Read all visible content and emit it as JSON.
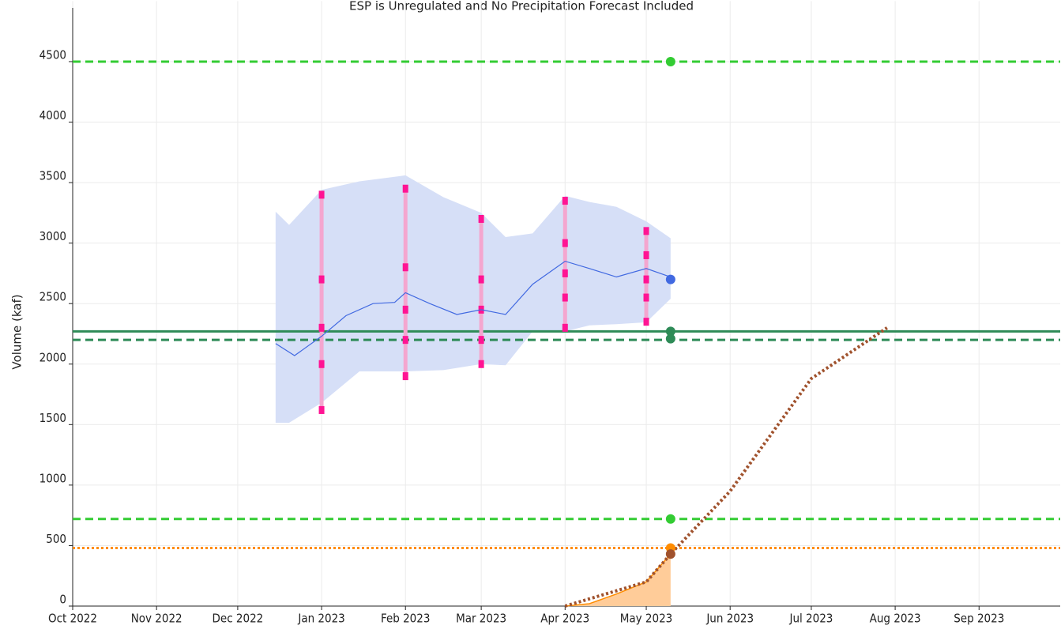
{
  "chart_data": {
    "type": "line",
    "title": "ESP is Unregulated and No Precipitation Forecast Included",
    "y_label": "Volume (kaf)",
    "xlim": [
      "2022-10-01",
      "2023-10-01"
    ],
    "xticks": [
      {
        "value": "2022-10-01",
        "label": "Oct 2022"
      },
      {
        "value": "2022-11-01",
        "label": "Nov 2022"
      },
      {
        "value": "2022-12-01",
        "label": "Dec 2022"
      },
      {
        "value": "2023-01-01",
        "label": "Jan 2023"
      },
      {
        "value": "2023-02-01",
        "label": "Feb 2023"
      },
      {
        "value": "2023-03-01",
        "label": "Mar 2023"
      },
      {
        "value": "2023-04-01",
        "label": "Apr 2023"
      },
      {
        "value": "2023-05-01",
        "label": "May 2023"
      },
      {
        "value": "2023-06-01",
        "label": "Jun 2023"
      },
      {
        "value": "2023-07-01",
        "label": "Jul 2023"
      },
      {
        "value": "2023-08-01",
        "label": "Aug 2023"
      },
      {
        "value": "2023-09-01",
        "label": "Sep 2023"
      }
    ],
    "ylim": [
      0,
      5000
    ],
    "yticks": [
      0,
      500,
      1000,
      1500,
      2000,
      2500,
      3000,
      3500,
      4000,
      4500
    ],
    "grid": true,
    "horizontal_lines": [
      {
        "value": 4500,
        "color": "#33cc33",
        "dash": "dashed"
      },
      {
        "value": 720,
        "color": "#33cc33",
        "dash": "dashed"
      },
      {
        "value": 2270,
        "color": "#2e8b57",
        "dash": "solid"
      },
      {
        "value": 2200,
        "color": "#2e8b57",
        "dash": "dashed"
      },
      {
        "value": 480,
        "color": "#ff8c00",
        "dash": "dotted"
      }
    ],
    "band": {
      "color": "#d6dff7",
      "x": [
        "2022-12-15",
        "2022-12-20",
        "2023-01-01",
        "2023-01-15",
        "2023-02-01",
        "2023-02-15",
        "2023-03-01",
        "2023-03-10",
        "2023-03-20",
        "2023-04-01",
        "2023-04-10",
        "2023-04-20",
        "2023-05-01",
        "2023-05-10"
      ],
      "upper": [
        3260,
        3150,
        3440,
        3510,
        3560,
        3380,
        3250,
        3050,
        3080,
        3390,
        3340,
        3300,
        3180,
        3040
      ],
      "lower": [
        1515,
        1515,
        1680,
        1940,
        1940,
        1950,
        2000,
        1990,
        2270,
        2270,
        2320,
        2330,
        2345,
        2540
      ]
    },
    "median": {
      "color": "#4169e1",
      "x": [
        "2022-12-15",
        "2022-12-22",
        "2023-01-01",
        "2023-01-10",
        "2023-01-20",
        "2023-01-28",
        "2023-02-01",
        "2023-02-10",
        "2023-02-20",
        "2023-03-01",
        "2023-03-10",
        "2023-03-20",
        "2023-04-01",
        "2023-04-10",
        "2023-04-20",
        "2023-05-01",
        "2023-05-10"
      ],
      "values": [
        2170,
        2070,
        2230,
        2400,
        2500,
        2510,
        2590,
        2500,
        2410,
        2450,
        2410,
        2660,
        2850,
        2790,
        2720,
        2790,
        2720
      ]
    },
    "ranges": {
      "color": "#ff1493",
      "bar_color": "#f4a6cf",
      "series": [
        {
          "x": "2023-01-01",
          "values": [
            1620,
            2000,
            2300,
            2700,
            3400
          ]
        },
        {
          "x": "2023-02-01",
          "values": [
            1900,
            2200,
            2450,
            2800,
            3450
          ]
        },
        {
          "x": "2023-03-01",
          "values": [
            2000,
            2200,
            2450,
            2700,
            3200
          ]
        },
        {
          "x": "2023-04-01",
          "values": [
            2300,
            2550,
            2750,
            3000,
            3350
          ]
        },
        {
          "x": "2023-05-01",
          "values": [
            2350,
            2550,
            2700,
            2900,
            3100
          ]
        }
      ]
    },
    "observed": {
      "color": "#ffcc99",
      "edge": "#ff8c00",
      "x": [
        "2023-04-01",
        "2023-04-10",
        "2023-04-20",
        "2023-05-01",
        "2023-05-10"
      ],
      "values": [
        0,
        20,
        100,
        200,
        430
      ]
    },
    "projection": {
      "color": "#a0522d",
      "x": [
        "2023-04-01",
        "2023-05-01",
        "2023-05-10",
        "2023-06-01",
        "2023-07-01",
        "2023-07-29"
      ],
      "values": [
        0,
        200,
        430,
        950,
        1880,
        2300
      ]
    },
    "points": {
      "x": "2023-05-10",
      "values": [
        4500,
        720,
        2700,
        2270,
        2210,
        480,
        430
      ],
      "colors": [
        "#33cc33",
        "#33cc33",
        "#4169e1",
        "#2e8b57",
        "#2e8b57",
        "#ff8c00",
        "#a0522d"
      ]
    }
  }
}
